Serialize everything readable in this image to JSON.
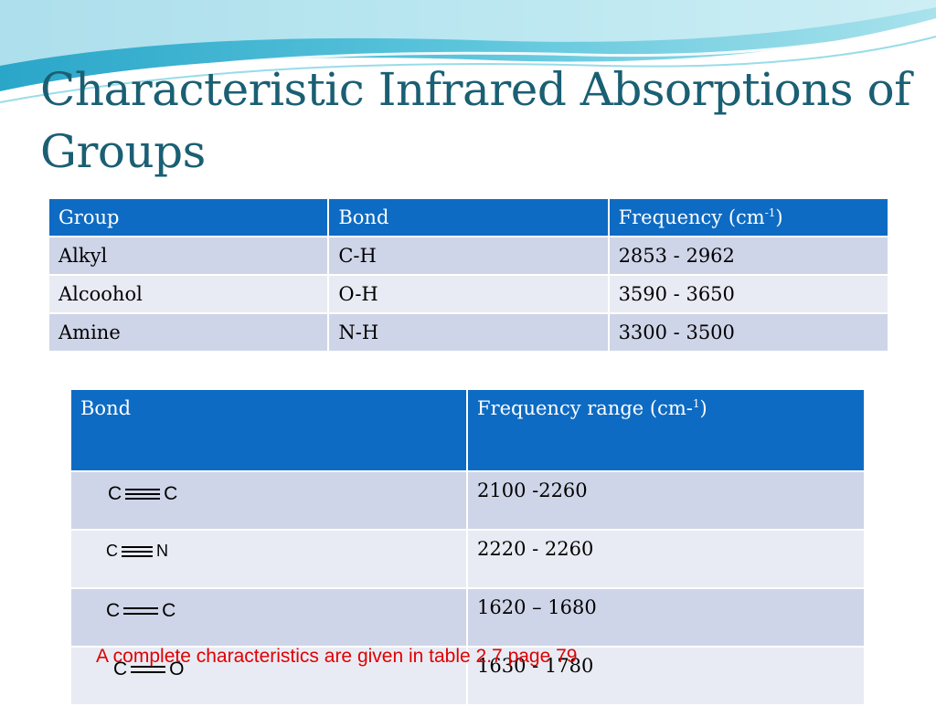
{
  "slide": {
    "title": "Characteristic Infrared Absorptions of Groups",
    "footer": "A complete characteristics are given in table 2.7 page 79",
    "colors": {
      "title": "#1a5f73",
      "header_bg": "#0e6bc3",
      "row_dark": "#cfd5e8",
      "row_light": "#e9ebf4",
      "footer": "#e00000"
    }
  },
  "table1": {
    "headers": {
      "group": "Group",
      "bond": "Bond",
      "frequency": "Frequency (cm",
      "frequency_sup": "-1",
      "frequency_close": ")"
    },
    "rows": [
      {
        "group": "Alkyl",
        "bond": "C-H",
        "frequency": "2853 - 2962"
      },
      {
        "group": "Alcoohol",
        "bond": "O-H",
        "frequency": "3590 - 3650"
      },
      {
        "group": "Amine",
        "bond": "N-H",
        "frequency": "3300 - 3500"
      }
    ]
  },
  "table2": {
    "headers": {
      "bond": "Bond",
      "frequency": "Frequency range (cm-",
      "frequency_sup": "1",
      "frequency_close": ")"
    },
    "rows": [
      {
        "atom1": "C",
        "atom2": "C",
        "bond_order": 3,
        "frequency": "2100 -2260"
      },
      {
        "atom1": "C",
        "atom2": "N",
        "bond_order": 3,
        "frequency": "2220 - 2260"
      },
      {
        "atom1": "C",
        "atom2": "C",
        "bond_order": 2,
        "frequency": "1620 – 1680"
      },
      {
        "atom1": "C",
        "atom2": "O",
        "bond_order": 2,
        "frequency": "1630 - 1780"
      }
    ]
  }
}
